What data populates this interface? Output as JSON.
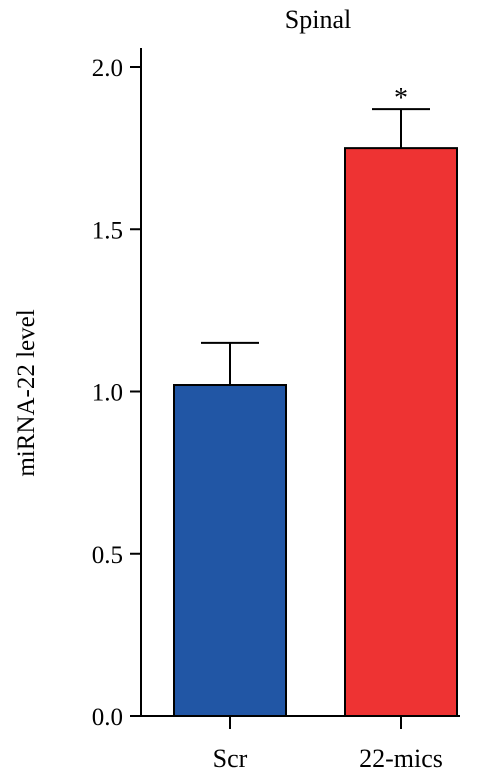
{
  "chart_data": {
    "type": "bar",
    "title": "Spinal",
    "xlabel": "",
    "ylabel": "miRNA-22 level",
    "ylim": [
      0,
      2.0
    ],
    "yticks": [
      "0.0",
      "0.5",
      "1.0",
      "1.5",
      "2.0"
    ],
    "ytick_values": [
      0,
      0.5,
      1.0,
      1.5,
      2.0
    ],
    "categories": [
      "Scr",
      "22-mics"
    ],
    "values": [
      1.02,
      1.75
    ],
    "errors": [
      0.13,
      0.12
    ],
    "annotations": [
      "",
      "*"
    ],
    "colors": [
      "#2156a5",
      "#ee3333"
    ],
    "grid": false,
    "legend": "none"
  }
}
